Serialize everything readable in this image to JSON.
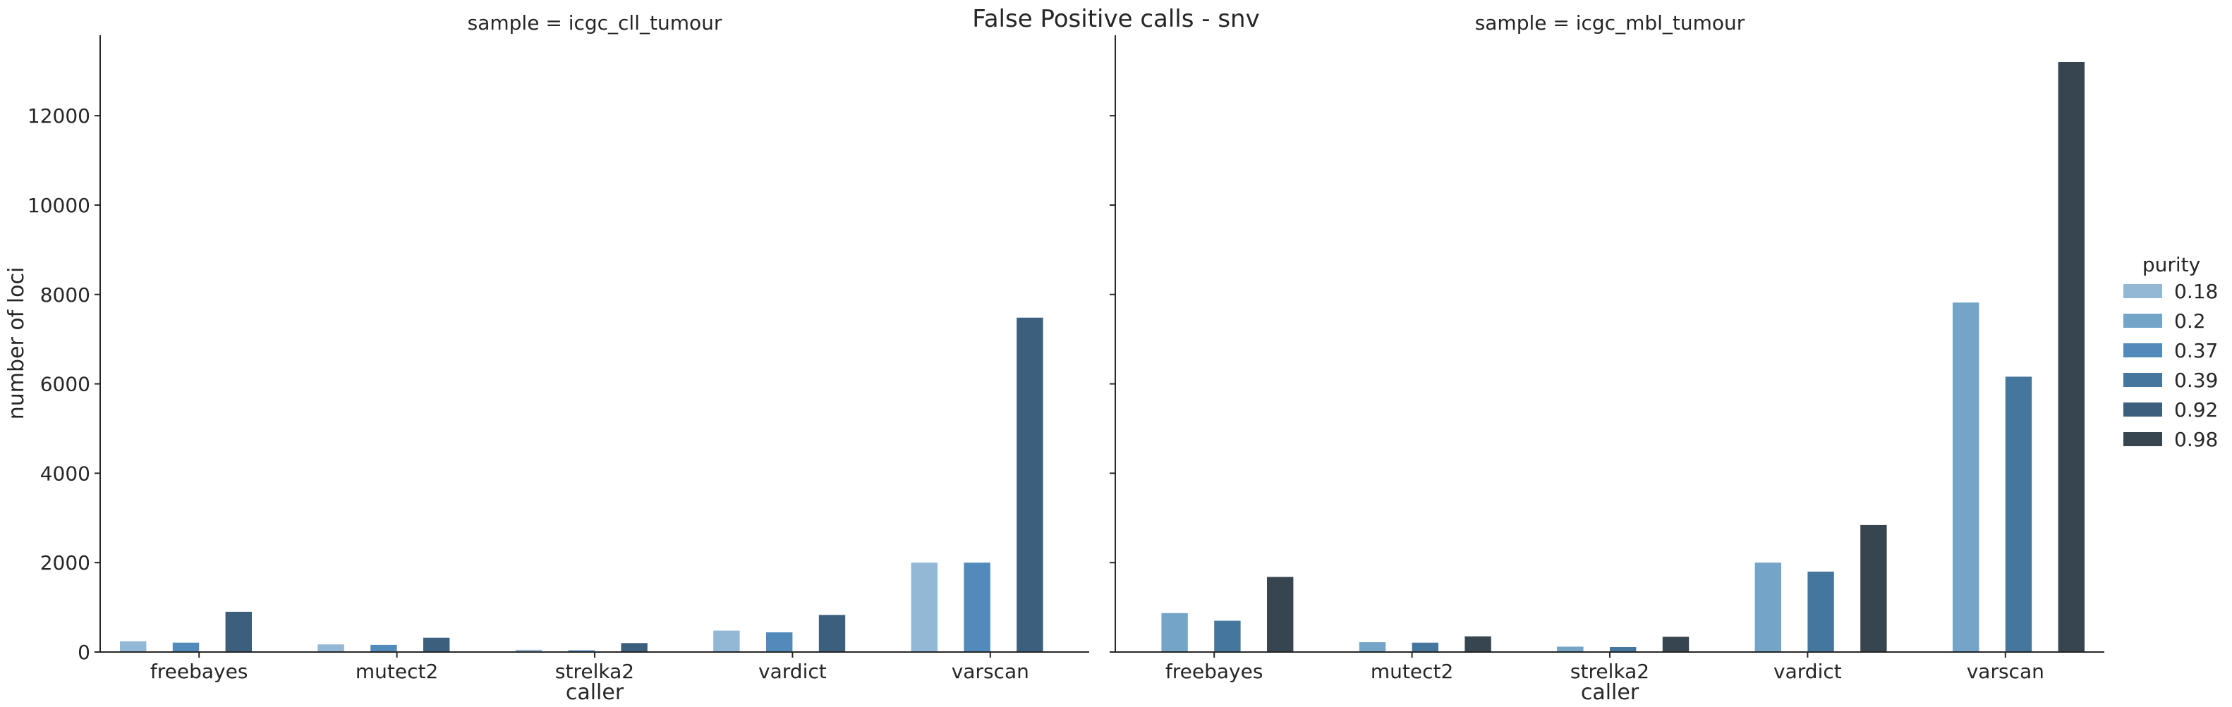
{
  "title": "False Positive calls - snv",
  "chart_data": {
    "type": "bar",
    "title": "False Positive calls - snv",
    "xlabel": "caller",
    "ylabel": "number of loci",
    "ylim": [
      0,
      13800
    ],
    "yticks": [
      0,
      2000,
      4000,
      6000,
      8000,
      10000,
      12000
    ],
    "grid": false,
    "legend": {
      "title": "purity",
      "placement": "right",
      "entries": [
        {
          "label": "0.18",
          "color": "#93b8d6"
        },
        {
          "label": "0.2",
          "color": "#74a4c8"
        },
        {
          "label": "0.37",
          "color": "#528bbb"
        },
        {
          "label": "0.39",
          "color": "#44769e"
        },
        {
          "label": "0.92",
          "color": "#3b5f7c"
        },
        {
          "label": "0.98",
          "color": "#36454f"
        }
      ]
    },
    "hue_order": [
      "0.18",
      "0.2",
      "0.37",
      "0.39",
      "0.92",
      "0.98"
    ],
    "categories": [
      "freebayes",
      "mutect2",
      "strelka2",
      "vardict",
      "varscan"
    ],
    "facets": [
      {
        "title": "sample = icgc_cll_tumour",
        "series": [
          {
            "name": "0.18",
            "values": [
              240,
              170,
              50,
              480,
              2000
            ]
          },
          {
            "name": "0.37",
            "values": [
              210,
              160,
              40,
              440,
              2000
            ]
          },
          {
            "name": "0.92",
            "values": [
              900,
              320,
              200,
              830,
              7480
            ]
          }
        ]
      },
      {
        "title": "sample = icgc_mbl_tumour",
        "series": [
          {
            "name": "0.2",
            "values": [
              870,
              220,
              120,
              2000,
              7820
            ]
          },
          {
            "name": "0.39",
            "values": [
              700,
              210,
              110,
              1800,
              6160
            ]
          },
          {
            "name": "0.98",
            "values": [
              1680,
              350,
              340,
              2840,
              13200
            ]
          }
        ]
      }
    ]
  }
}
